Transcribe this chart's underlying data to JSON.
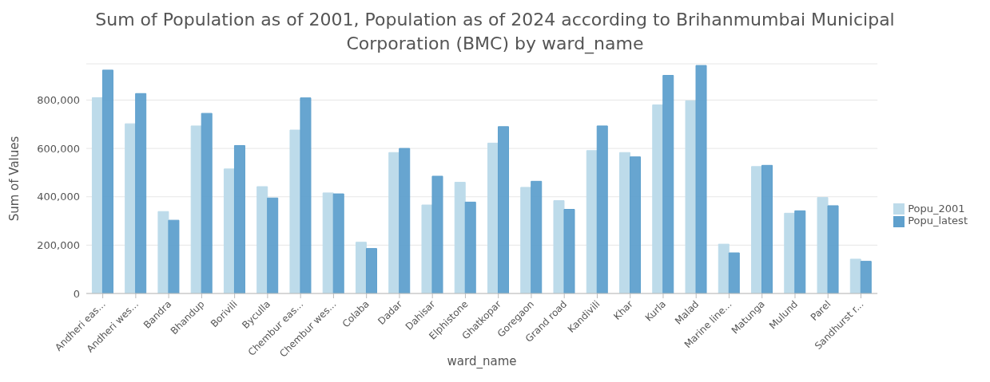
{
  "chart_data": {
    "type": "bar",
    "title": "Sum of Population as of 2001, Population as of 2024 according to Brihanmumbai Municipal Corporation (BMC) by ward_name",
    "xlabel": "ward_name",
    "ylabel": "Sum of Values",
    "categories": [
      "Andheri eas...",
      "Andheri wes...",
      "Bandra",
      "Bhandup",
      "Borivili",
      "Byculla",
      "Chembur eas...",
      "Chembur wes...",
      "Colaba",
      "Dadar",
      "Dahisar",
      "Elphistone",
      "Ghatkopar",
      "Goregaon",
      "Grand road",
      "Kandivili",
      "Khar",
      "Kurla",
      "Malad",
      "Marine line...",
      "Matunga",
      "Mulund",
      "Parel",
      "Sandhurst r..."
    ],
    "series": [
      {
        "name": "Popu_2001",
        "color": "#bddbea",
        "values": [
          810000,
          702000,
          339000,
          693000,
          515000,
          442000,
          676000,
          416000,
          212000,
          583000,
          366000,
          460000,
          622000,
          439000,
          384000,
          591000,
          583000,
          780000,
          797000,
          204000,
          525000,
          332000,
          397000,
          142000
        ]
      },
      {
        "name": "Popu_latest",
        "color": "#5fa0cd",
        "values": [
          924000,
          827000,
          303000,
          745000,
          612000,
          395000,
          809000,
          412000,
          186000,
          600000,
          485000,
          378000,
          690000,
          464000,
          348000,
          693000,
          565000,
          902000,
          943000,
          168000,
          530000,
          342000,
          363000,
          133000
        ]
      }
    ],
    "ylim": [
      0,
      950000
    ],
    "yticks": [
      0,
      {
        "value": 200000,
        "label": "200,000"
      },
      {
        "value": 400000,
        "label": "400,000"
      },
      {
        "value": 600000,
        "label": "600,000"
      },
      {
        "value": 800000,
        "label": "800,000"
      }
    ],
    "grid": "y",
    "legend": "right"
  }
}
